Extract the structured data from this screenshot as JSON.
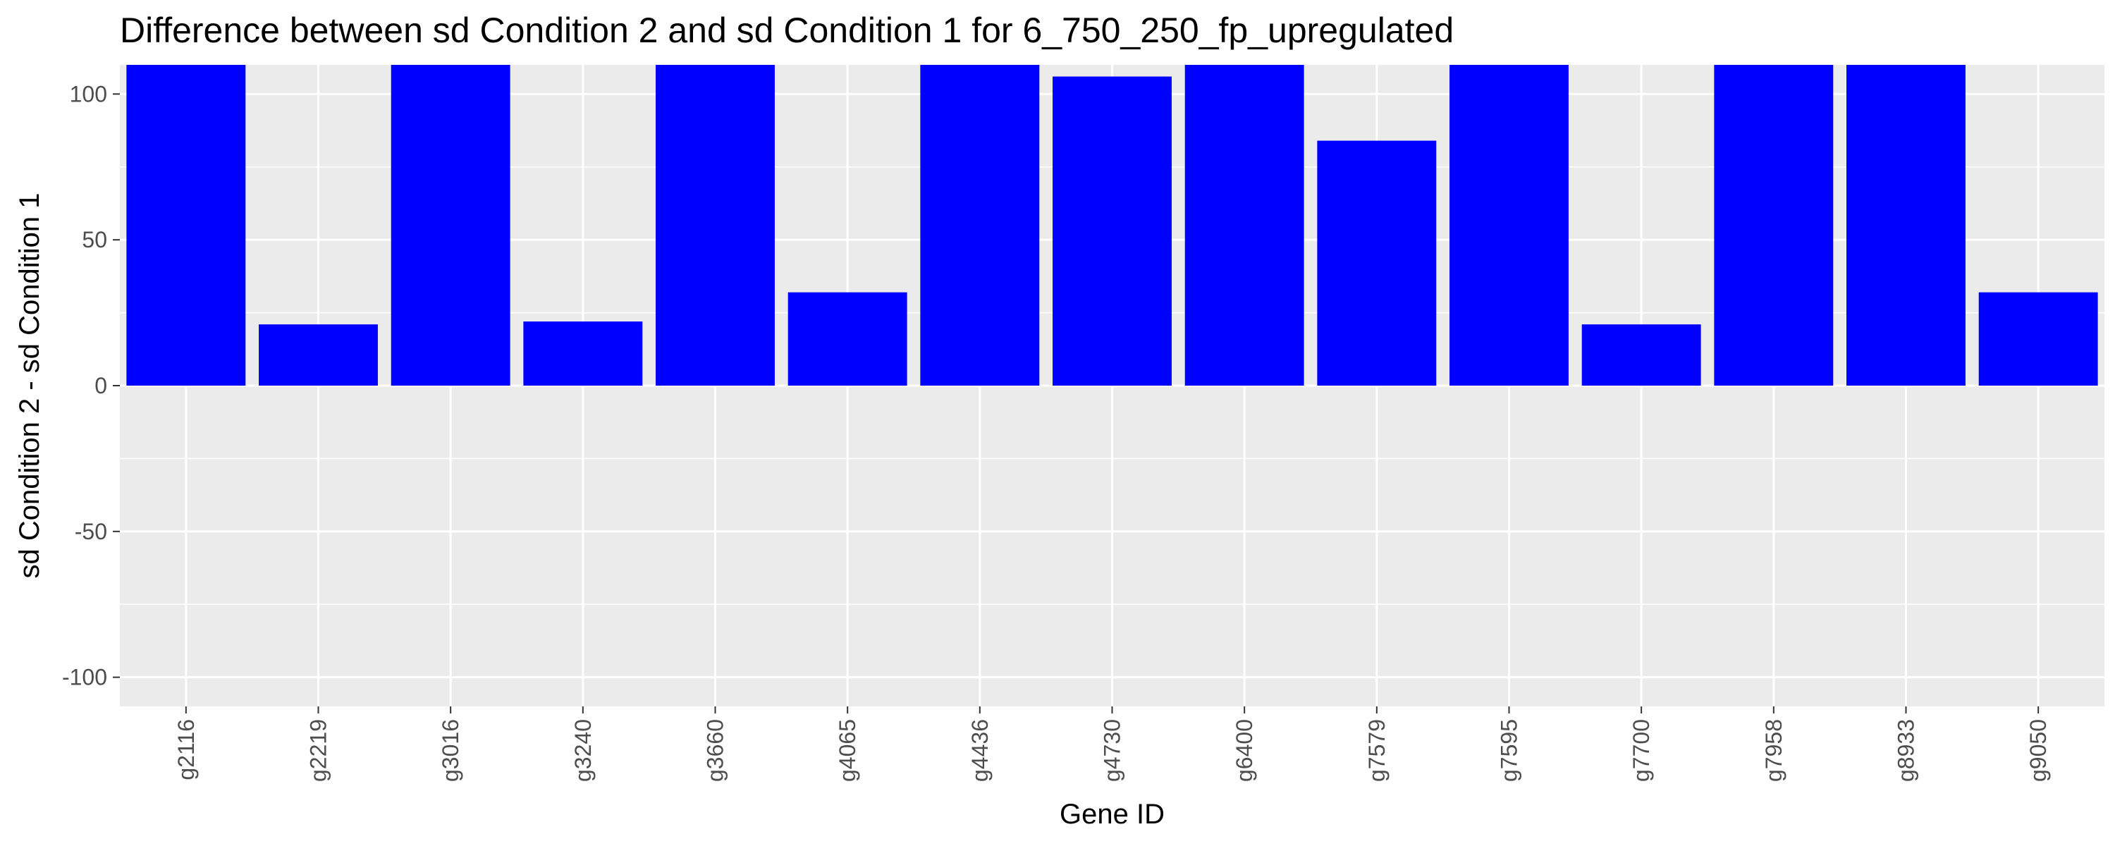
{
  "chart_data": {
    "type": "bar",
    "title": "Difference between sd Condition 2 and sd Condition 1 for 6_750_250_fp_upregulated",
    "xlabel": "Gene ID",
    "ylabel": "sd Condition 2 - sd Condition 1",
    "categories": [
      "g2116",
      "g2219",
      "g3016",
      "g3240",
      "g3660",
      "g4065",
      "g4436",
      "g4730",
      "g6400",
      "g7579",
      "g7595",
      "g7700",
      "g7958",
      "g8933",
      "g9050"
    ],
    "values": [
      110,
      21,
      110,
      22,
      110,
      32,
      110,
      106,
      110,
      84,
      110,
      21,
      110,
      110,
      32
    ],
    "ylim": [
      -110,
      110
    ],
    "yticks": [
      -100,
      -50,
      0,
      50,
      100
    ],
    "ytick_labels": [
      "-100",
      "-50",
      "0",
      "50",
      "100"
    ],
    "grid": true,
    "colors": {
      "bar": "#0000ff",
      "panel": "#ebebeb",
      "grid": "#ffffff"
    }
  }
}
